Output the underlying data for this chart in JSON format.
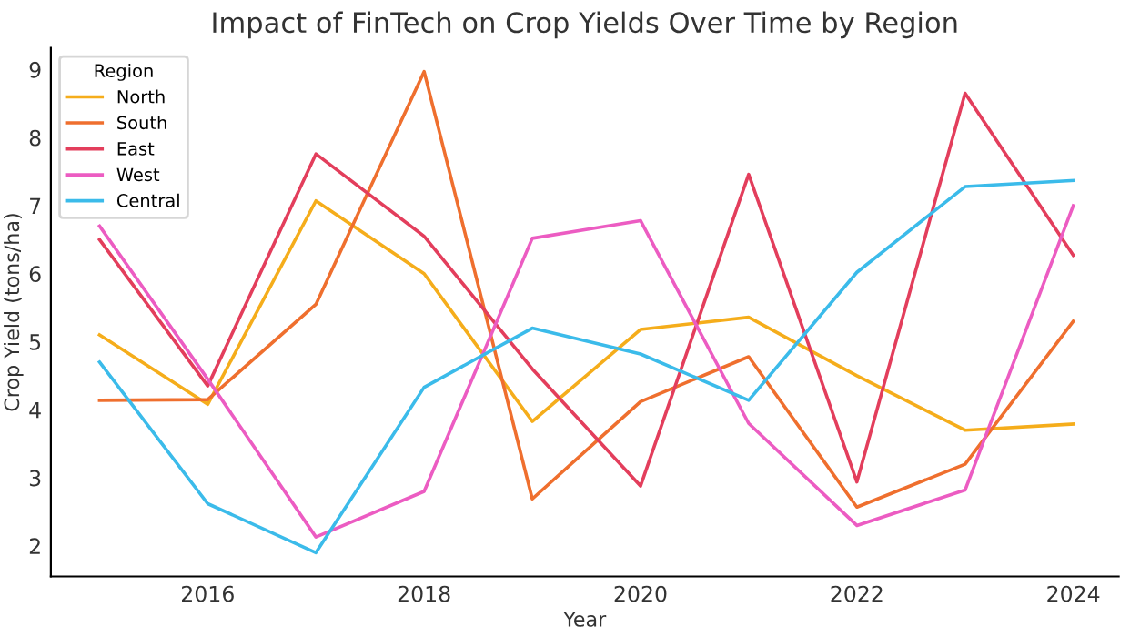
{
  "chart_data": {
    "type": "line",
    "title": "Impact of FinTech on Crop Yields Over Time by Region",
    "xlabel": "Year",
    "ylabel": "Crop Yield (tons/ha)",
    "legend_title": "Region",
    "legend": "top left",
    "grid": false,
    "x": [
      2015,
      2016,
      2017,
      2018,
      2019,
      2020,
      2021,
      2022,
      2023,
      2024
    ],
    "xlim": [
      2014.55,
      2024.42
    ],
    "xticks": [
      2016,
      2018,
      2020,
      2022,
      2024
    ],
    "ylim": [
      1.55,
      9.32
    ],
    "yticks": [
      2,
      3,
      4,
      5,
      6,
      7,
      8,
      9
    ],
    "series": [
      {
        "name": "North",
        "color": "#f5ad1b",
        "values": [
          5.1,
          4.08,
          7.07,
          6.0,
          3.83,
          5.18,
          5.36,
          4.5,
          3.7,
          3.79
        ]
      },
      {
        "name": "South",
        "color": "#ef6f2e",
        "values": [
          4.14,
          4.15,
          5.55,
          8.97,
          2.69,
          4.12,
          4.78,
          2.57,
          3.2,
          5.3
        ]
      },
      {
        "name": "East",
        "color": "#e33e5c",
        "values": [
          6.5,
          4.35,
          7.76,
          6.55,
          4.6,
          2.88,
          7.46,
          2.94,
          8.65,
          6.27
        ]
      },
      {
        "name": "West",
        "color": "#ec5cc2",
        "values": [
          6.7,
          4.45,
          2.13,
          2.8,
          6.52,
          6.78,
          3.8,
          2.3,
          2.82,
          7.0
        ]
      },
      {
        "name": "Central",
        "color": "#3bbbea",
        "values": [
          4.7,
          2.62,
          1.9,
          4.33,
          5.2,
          4.82,
          4.14,
          6.02,
          7.28,
          7.37
        ]
      }
    ]
  }
}
